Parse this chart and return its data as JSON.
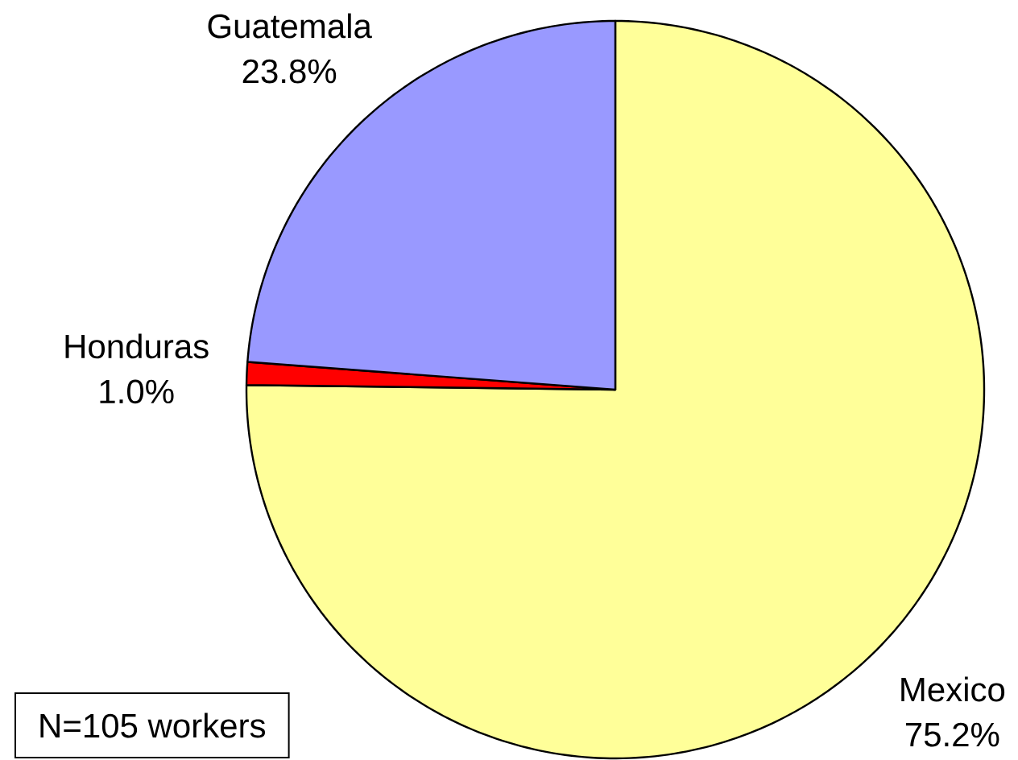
{
  "chart_data": {
    "type": "pie",
    "categories": [
      "Mexico",
      "Honduras",
      "Guatemala"
    ],
    "values": [
      75.2,
      1.0,
      23.8
    ],
    "colors": [
      "#ffff99",
      "#ff0000",
      "#9999ff"
    ],
    "value_labels": [
      "75.2%",
      "1.0%",
      "23.8%"
    ],
    "annotations": [
      "N=105 workers"
    ]
  }
}
